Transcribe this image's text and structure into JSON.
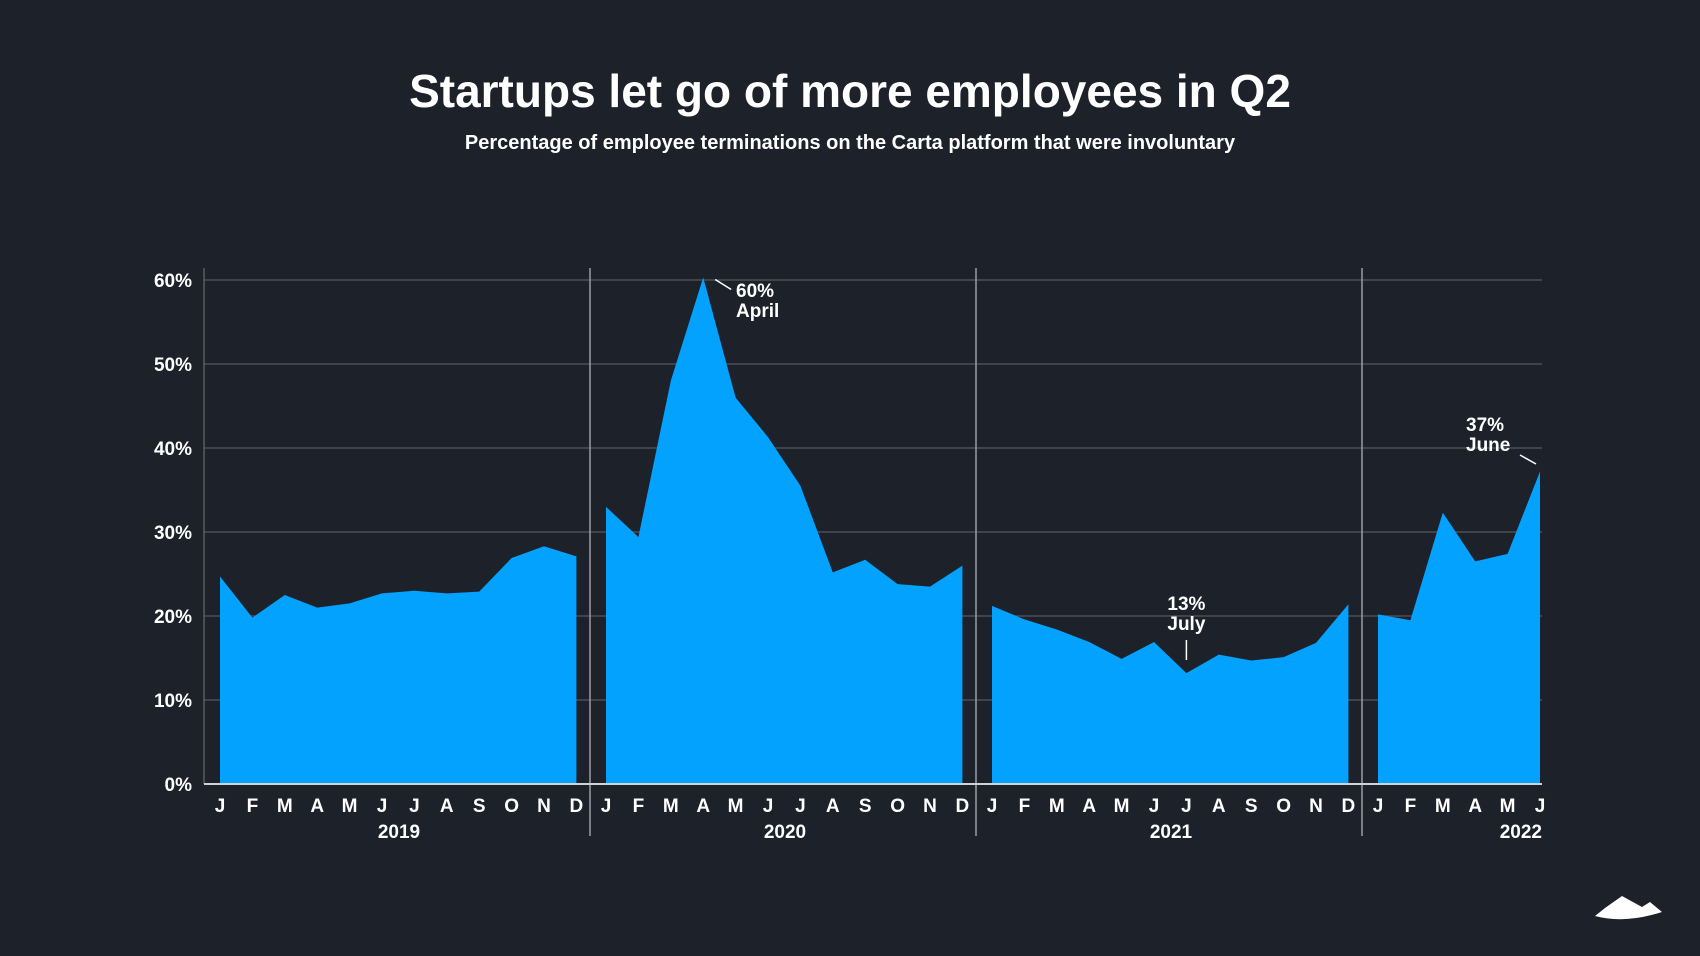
{
  "title": "Startups let go of more employees in Q2",
  "subtitle": "Percentage of employee terminations on the Carta platform that were involuntary",
  "colors": {
    "background": "#1c212a",
    "area": "#03a2ff",
    "text": "#ffffff",
    "grid": "#4a4f57"
  },
  "logo": "carta-mountain-logo",
  "chart_data": {
    "type": "area",
    "title": "Startups let go of more employees in Q2",
    "subtitle": "Percentage of employee terminations on the Carta platform that were involuntary",
    "xlabel": "",
    "ylabel": "",
    "ylim": [
      0,
      60
    ],
    "yticks": [
      "0%",
      "10%",
      "20%",
      "30%",
      "40%",
      "50%",
      "60%"
    ],
    "grid": true,
    "legend": "none",
    "years": [
      {
        "label": "2019",
        "months": [
          "J",
          "F",
          "M",
          "A",
          "M",
          "J",
          "J",
          "A",
          "S",
          "O",
          "N",
          "D"
        ],
        "values": [
          24.7,
          19.8,
          22.5,
          21.0,
          21.5,
          22.7,
          23.0,
          22.7,
          22.9,
          26.9,
          28.3,
          27.1
        ]
      },
      {
        "label": "2020",
        "months": [
          "J",
          "F",
          "M",
          "A",
          "M",
          "J",
          "J",
          "A",
          "S",
          "O",
          "N",
          "D"
        ],
        "values": [
          33.0,
          29.4,
          48.0,
          60.3,
          46.0,
          41.3,
          35.5,
          25.2,
          26.7,
          23.8,
          23.5,
          26.0
        ]
      },
      {
        "label": "2021",
        "months": [
          "J",
          "F",
          "M",
          "A",
          "M",
          "J",
          "J",
          "A",
          "S",
          "O",
          "N",
          "D"
        ],
        "values": [
          21.2,
          19.6,
          18.4,
          16.9,
          14.9,
          16.9,
          13.2,
          15.4,
          14.7,
          15.1,
          16.8,
          21.4
        ]
      },
      {
        "label": "2022",
        "months": [
          "J",
          "F",
          "M",
          "A",
          "M",
          "J"
        ],
        "values": [
          20.2,
          19.5,
          32.3,
          26.5,
          27.4,
          37.2
        ]
      }
    ],
    "annotations": [
      {
        "year": 1,
        "month": 3,
        "value_label": "60%",
        "month_label": "April"
      },
      {
        "year": 2,
        "month": 6,
        "value_label": "13%",
        "month_label": "July"
      },
      {
        "year": 3,
        "month": 5,
        "value_label": "37%",
        "month_label": "June"
      }
    ]
  }
}
